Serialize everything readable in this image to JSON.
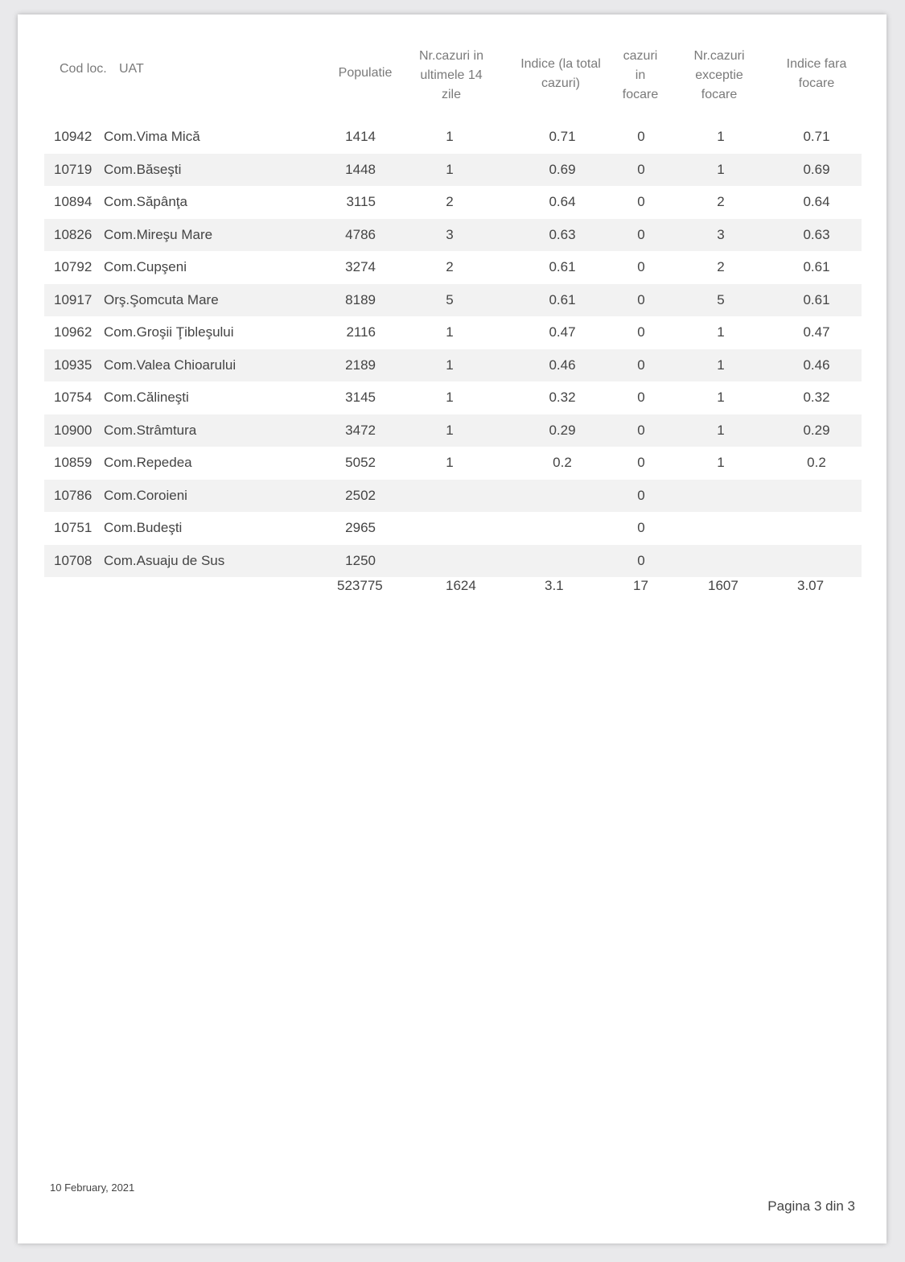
{
  "headers": {
    "cod": "Cod loc.",
    "uat": "UAT",
    "populatie": "Populatie",
    "cazuri14": "Nr.cazuri in ultimele 14 zile",
    "indice": "Indice (la total cazuri)",
    "focare": "cazuri in focare",
    "exceptie": "Nr.cazuri exceptie focare",
    "fara": "Indice fara focare"
  },
  "rows": [
    [
      "10942",
      "Com.Vima Mică",
      "1414",
      "1",
      "0.71",
      "0",
      "1",
      "0.71"
    ],
    [
      "10719",
      "Com.Băseşti",
      "1448",
      "1",
      "0.69",
      "0",
      "1",
      "0.69"
    ],
    [
      "10894",
      "Com.Săpânţa",
      "3115",
      "2",
      "0.64",
      "0",
      "2",
      "0.64"
    ],
    [
      "10826",
      "Com.Mireşu Mare",
      "4786",
      "3",
      "0.63",
      "0",
      "3",
      "0.63"
    ],
    [
      "10792",
      "Com.Cupşeni",
      "3274",
      "2",
      "0.61",
      "0",
      "2",
      "0.61"
    ],
    [
      "10917",
      "Orş.Şomcuta Mare",
      "8189",
      "5",
      "0.61",
      "0",
      "5",
      "0.61"
    ],
    [
      "10962",
      "Com.Groşii Ţibleşului",
      "2116",
      "1",
      "0.47",
      "0",
      "1",
      "0.47"
    ],
    [
      "10935",
      "Com.Valea Chioarului",
      "2189",
      "1",
      "0.46",
      "0",
      "1",
      "0.46"
    ],
    [
      "10754",
      "Com.Călineşti",
      "3145",
      "1",
      "0.32",
      "0",
      "1",
      "0.32"
    ],
    [
      "10900",
      "Com.Strâmtura",
      "3472",
      "1",
      "0.29",
      "0",
      "1",
      "0.29"
    ],
    [
      "10859",
      "Com.Repedea",
      "5052",
      "1",
      "0.2",
      "0",
      "1",
      "0.2"
    ],
    [
      "10786",
      "Com.Coroieni",
      "2502",
      "",
      "",
      "0",
      "",
      ""
    ],
    [
      "10751",
      "Com.Budeşti",
      "2965",
      "",
      "",
      "0",
      "",
      ""
    ],
    [
      "10708",
      "Com.Asuaju de Sus",
      "1250",
      "",
      "",
      "0",
      "",
      ""
    ]
  ],
  "totals": {
    "populatie": "523775",
    "cazuri14": "1624",
    "indice": "3.1",
    "focare": "17",
    "exceptie": "1607",
    "fara": "3.07"
  },
  "footer": {
    "date": "10 February, 2021",
    "page": "Pagina 3 din 3"
  }
}
